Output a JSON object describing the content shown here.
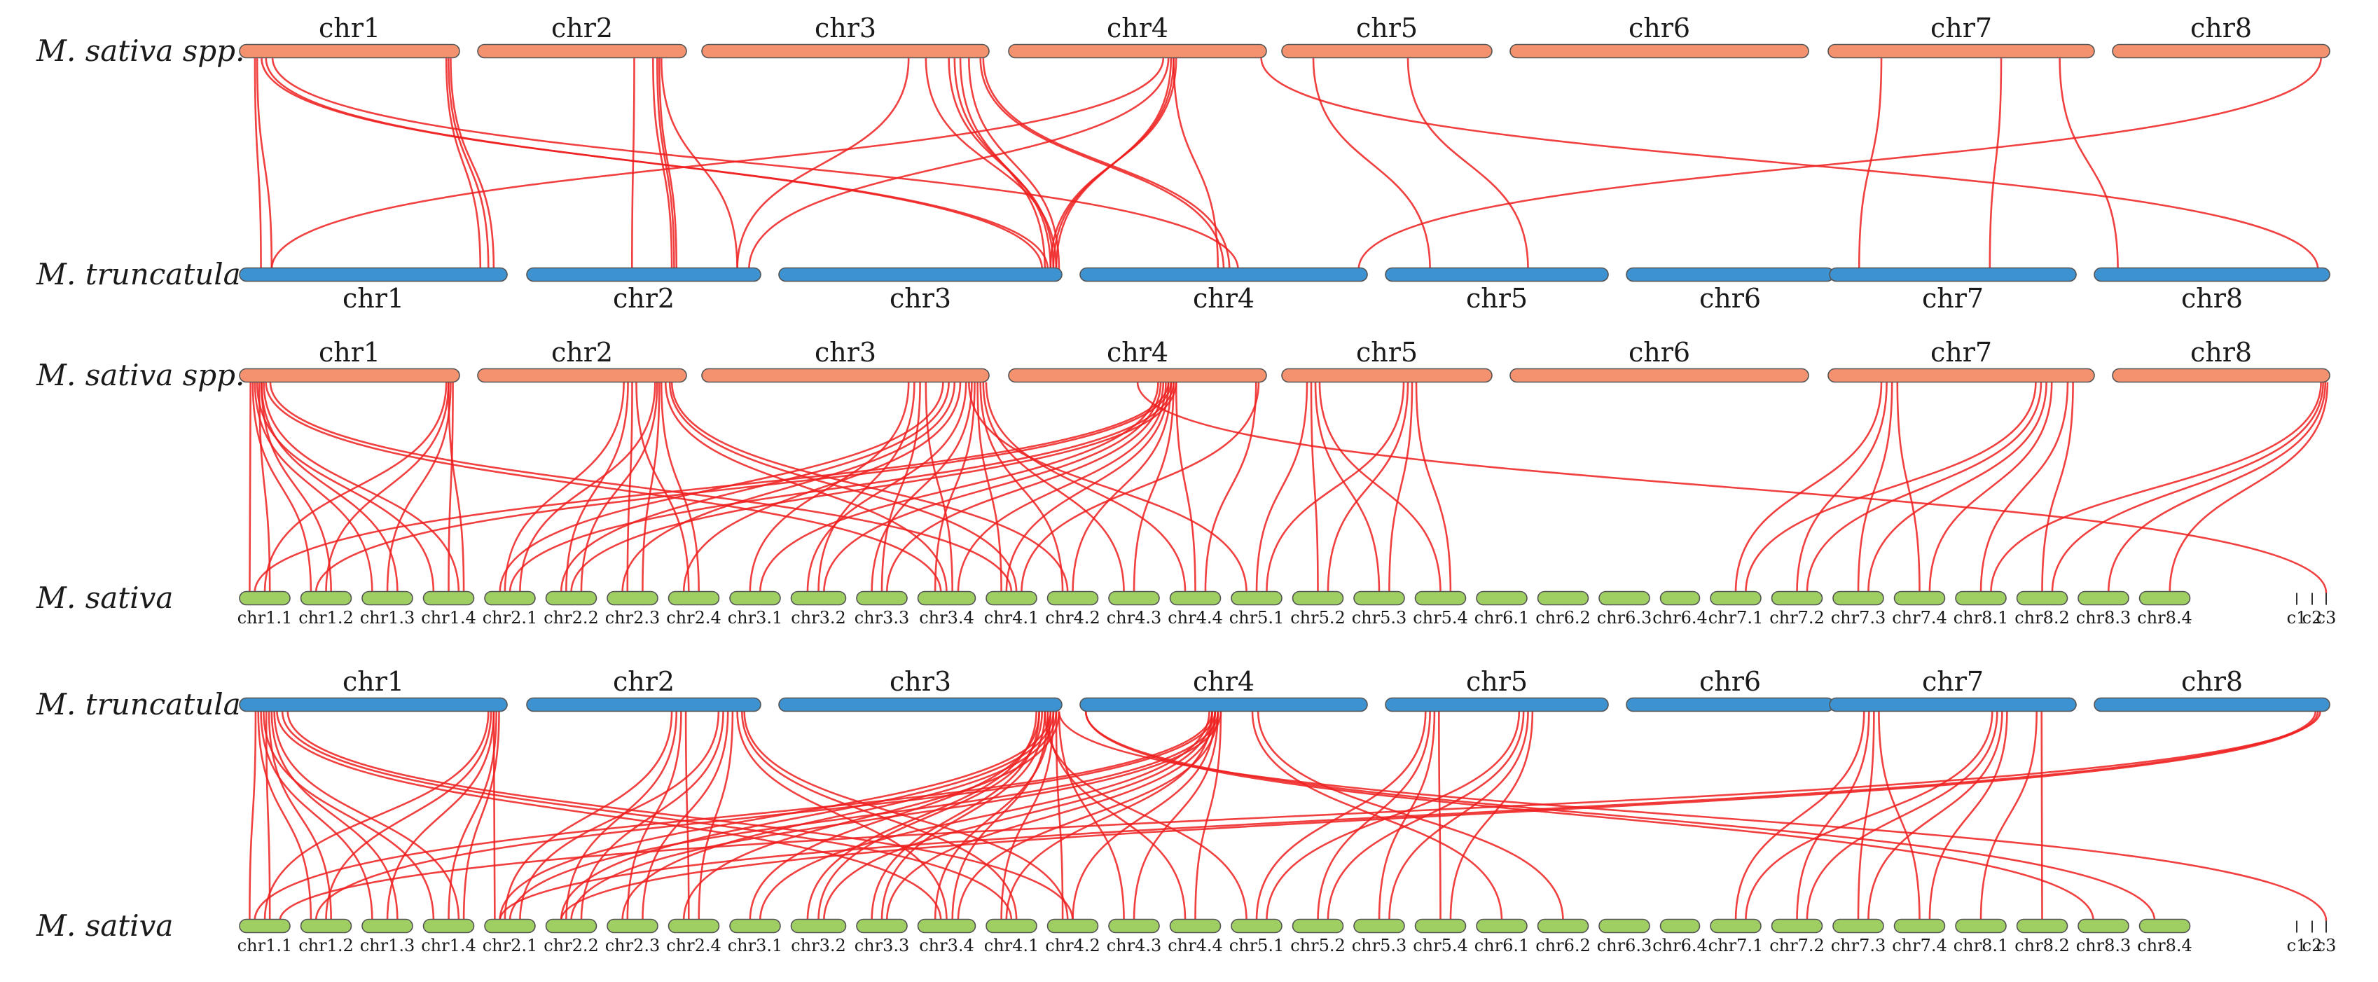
{
  "colors": {
    "sativa_spp": "#f4916f",
    "truncatula": "#3d93d1",
    "sativa": "#9fcf63",
    "link": "#ee1f1f"
  },
  "species": {
    "sativa_spp": "M. sativa spp.",
    "truncatula": "M. truncatula",
    "sativa": "M. sativa"
  },
  "chromosomes": {
    "sativa_spp": [
      "chr1",
      "chr2",
      "chr3",
      "chr4",
      "chr5",
      "chr6",
      "chr7",
      "chr8"
    ],
    "truncatula": [
      "chr1",
      "chr2",
      "chr3",
      "chr4",
      "chr5",
      "chr6",
      "chr7",
      "chr8"
    ],
    "sativa": [
      "chr1.1",
      "chr1.2",
      "chr1.3",
      "chr1.4",
      "chr2.1",
      "chr2.2",
      "chr2.3",
      "chr2.4",
      "chr3.1",
      "chr3.2",
      "chr3.3",
      "chr3.4",
      "chr4.1",
      "chr4.2",
      "chr4.3",
      "chr4.4",
      "chr5.1",
      "chr5.2",
      "chr5.3",
      "chr5.4",
      "chr6.1",
      "chr6.2",
      "chr6.3",
      "chr6.4",
      "chr7.1",
      "chr7.2",
      "chr7.3",
      "chr7.4",
      "chr8.1",
      "chr8.2",
      "chr8.3",
      "chr8.4",
      "c1",
      "c2",
      "c3"
    ]
  },
  "panels": [
    {
      "top": "sativa_spp",
      "bottom": "truncatula"
    },
    {
      "top": "sativa_spp",
      "bottom": "sativa"
    },
    {
      "top": "truncatula",
      "bottom": "sativa"
    }
  ]
}
